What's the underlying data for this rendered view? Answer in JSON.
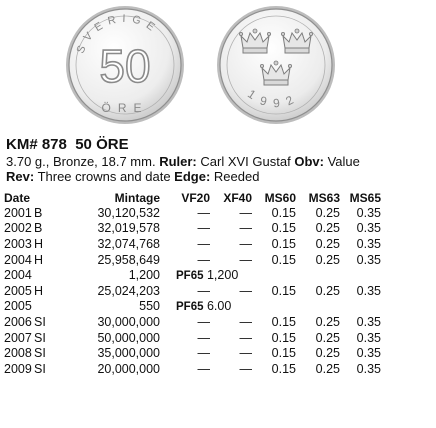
{
  "coin_images": {
    "obverse": {
      "value": "50",
      "legend_top": "SVERIGE",
      "legend_bottom": "ÖRE"
    },
    "reverse": {
      "date": "1992"
    }
  },
  "header": {
    "km_number": "KM# 878",
    "denomination": "50 ÖRE"
  },
  "description": {
    "specs": "3.70 g., Bronze, 18.7 mm.",
    "ruler_label": "Ruler:",
    "ruler": "Carl XVI Gustaf",
    "obv_label": "Obv:",
    "obv": "Value",
    "rev_label": "Rev:",
    "rev": "Three crowns and date",
    "edge_label": "Edge:",
    "edge": "Reeded"
  },
  "table": {
    "headers": [
      "Date",
      "Mintage",
      "VF20",
      "XF40",
      "MS60",
      "MS63",
      "MS65"
    ],
    "rows": [
      {
        "date": "2001",
        "mark": "B",
        "mintage": "30,120,532",
        "vf20": "—",
        "xf40": "—",
        "ms60": "0.15",
        "ms63": "0.25",
        "ms65": "0.35"
      },
      {
        "date": "2002",
        "mark": "B",
        "mintage": "32,019,578",
        "vf20": "—",
        "xf40": "—",
        "ms60": "0.15",
        "ms63": "0.25",
        "ms65": "0.35"
      },
      {
        "date": "2003",
        "mark": "H",
        "mintage": "32,074,768",
        "vf20": "—",
        "xf40": "—",
        "ms60": "0.15",
        "ms63": "0.25",
        "ms65": "0.35"
      },
      {
        "date": "2004",
        "mark": "H",
        "mintage": "25,958,649",
        "vf20": "—",
        "xf40": "—",
        "ms60": "0.15",
        "ms63": "0.25",
        "ms65": "0.35"
      },
      {
        "date": "2004",
        "mark": "",
        "mintage": "1,200",
        "proof_label": "PF65",
        "proof_value": "1,200"
      },
      {
        "date": "2005",
        "mark": "H",
        "mintage": "25,024,203",
        "vf20": "—",
        "xf40": "—",
        "ms60": "0.15",
        "ms63": "0.25",
        "ms65": "0.35"
      },
      {
        "date": "2005",
        "mark": "",
        "mintage": "550",
        "proof_label": "PF65",
        "proof_value": "6.00"
      },
      {
        "date": "2006",
        "mark": "SI",
        "mintage": "30,000,000",
        "vf20": "—",
        "xf40": "—",
        "ms60": "0.15",
        "ms63": "0.25",
        "ms65": "0.35"
      },
      {
        "date": "2007",
        "mark": "SI",
        "mintage": "50,000,000",
        "vf20": "—",
        "xf40": "—",
        "ms60": "0.15",
        "ms63": "0.25",
        "ms65": "0.35"
      },
      {
        "date": "2008",
        "mark": "SI",
        "mintage": "35,000,000",
        "vf20": "—",
        "xf40": "—",
        "ms60": "0.15",
        "ms63": "0.25",
        "ms65": "0.35"
      },
      {
        "date": "2009",
        "mark": "SI",
        "mintage": "20,000,000",
        "vf20": "—",
        "xf40": "—",
        "ms60": "0.15",
        "ms63": "0.25",
        "ms65": "0.35"
      }
    ]
  },
  "colors": {
    "text": "#111111",
    "coin_face": "#f2f2f2",
    "coin_rim": "#9a9a9a"
  }
}
